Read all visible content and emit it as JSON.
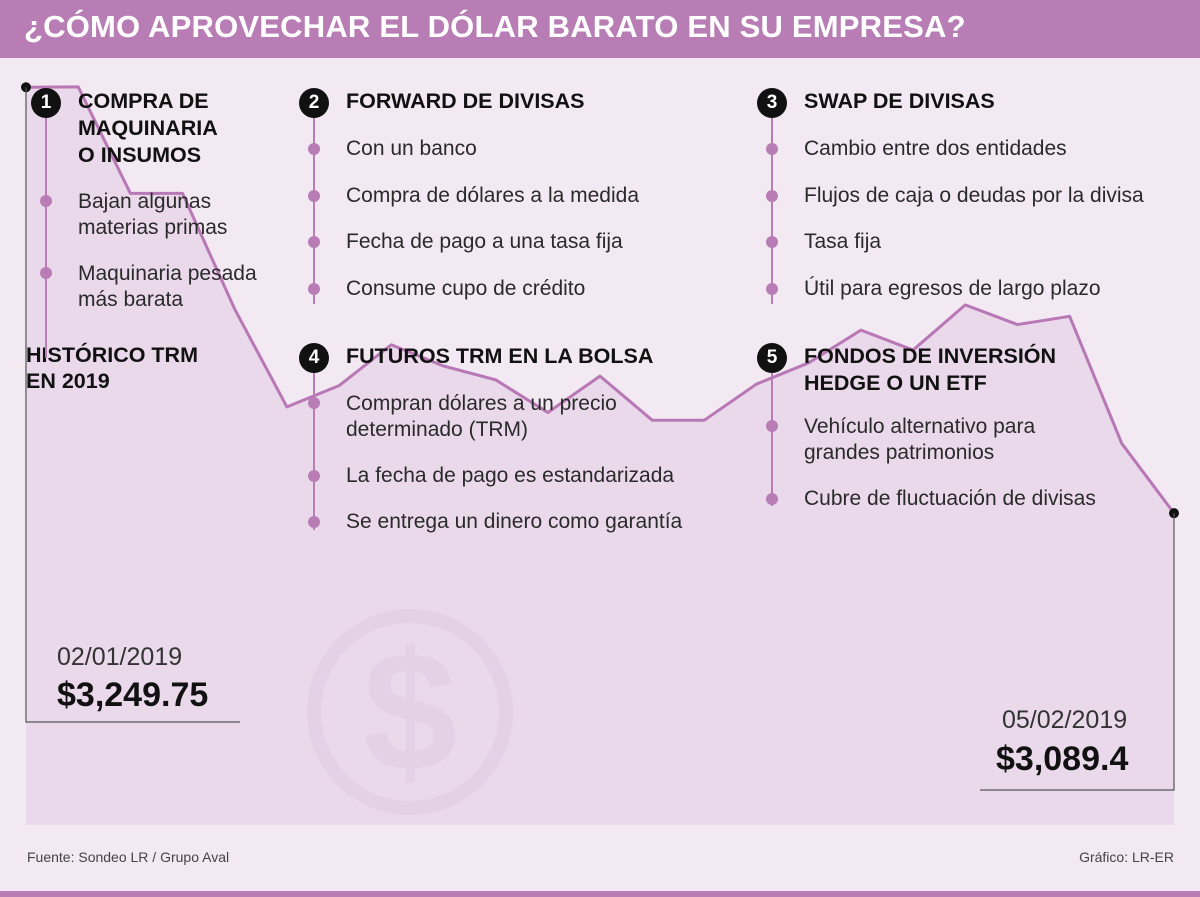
{
  "title": "¿CÓMO APROVECHAR EL DÓLAR BARATO EN SU EMPRESA?",
  "sections": [
    {
      "number": "1",
      "title_lines": [
        "COMPRA DE",
        "MAQUINARIA",
        "O INSUMOS"
      ],
      "bullets": [
        [
          "Bajan algunas",
          "materias primas"
        ],
        [
          "Maquinaria pesada",
          "más barata"
        ]
      ]
    },
    {
      "number": "2",
      "title_lines": [
        "FORWARD DE DIVISAS"
      ],
      "bullets": [
        [
          "Con un banco"
        ],
        [
          "Compra de dólares a la medida"
        ],
        [
          "Fecha de pago a una tasa fija"
        ],
        [
          "Consume cupo de crédito"
        ]
      ]
    },
    {
      "number": "3",
      "title_lines": [
        "SWAP DE DIVISAS"
      ],
      "bullets": [
        [
          "Cambio entre dos entidades"
        ],
        [
          "Flujos de caja o deudas por la divisa"
        ],
        [
          "Tasa fija"
        ],
        [
          "Útil para egresos de largo plazo"
        ]
      ]
    },
    {
      "number": "4",
      "title_lines": [
        "FUTUROS TRM EN LA BOLSA"
      ],
      "bullets": [
        [
          "Compran dólares a un precio",
          "determinado (TRM)"
        ],
        [
          "La fecha de pago es estandarizada"
        ],
        [
          "Se entrega un dinero como garantía"
        ]
      ]
    },
    {
      "number": "5",
      "title_lines": [
        "FONDOS DE INVERSIÓN",
        "HEDGE O UN ETF"
      ],
      "bullets": [
        [
          "Vehículo alternativo para",
          "grandes patrimonios"
        ],
        [
          "Cubre de fluctuación de divisas"
        ]
      ]
    }
  ],
  "chart_data": {
    "type": "area",
    "title_lines": [
      "HISTÓRICO TRM",
      "EN 2019"
    ],
    "series": [
      {
        "values": [
          3249.75,
          3249.9,
          3209.8,
          3209.8,
          3166.2,
          3129.4,
          3137.4,
          3152.8,
          3144.8,
          3139.6,
          3127.3,
          3141.0,
          3124.4,
          3124.4,
          3138.0,
          3146.0,
          3158.3,
          3150.8,
          3167.8,
          3160.4,
          3163.5,
          3115.6,
          3089.4
        ]
      }
    ],
    "ylim": [
      2972,
      3260
    ],
    "start": {
      "date": "02/01/2019",
      "value_label": "$3,249.75"
    },
    "end": {
      "date": "05/02/2019",
      "value_label": "$3,089.4"
    },
    "colors": {
      "line": "#b877b5",
      "fill": "#e7d5e8",
      "watermark": "#d9c2dc"
    },
    "watermark_icon": "dollar-coin-icon"
  },
  "footer": {
    "source": "Fuente: Sondeo LR / Grupo Aval",
    "credit": "Gráfico: LR-ER"
  }
}
